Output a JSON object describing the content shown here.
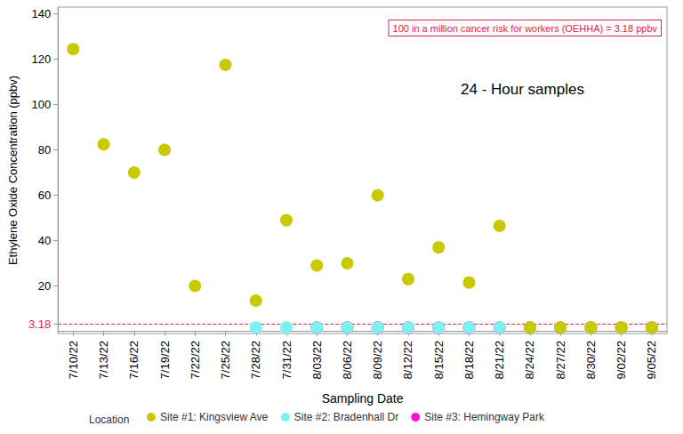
{
  "chart_data": {
    "type": "scatter",
    "annotations": [
      "24 - Hour samples"
    ],
    "threshold": {
      "value": 3.18,
      "label": "100 in a million cancer risk for workers (OEHHA) = 3.18 ppbv",
      "color": "#d9264a",
      "line_style": "dashed"
    },
    "x_label": "Sampling Date",
    "y_label": "Ethylene Oxide Concentration (ppbv)",
    "legend_title": "Location",
    "legend": "bottom",
    "grid": false,
    "marker": "circle",
    "categories": [
      "7/10/22",
      "7/13/22",
      "7/16/22",
      "7/19/22",
      "7/22/22",
      "7/25/22",
      "7/28/22",
      "7/31/22",
      "8/03/22",
      "8/06/22",
      "8/09/22",
      "8/12/22",
      "8/15/22",
      "8/18/22",
      "8/21/22",
      "8/24/22",
      "8/27/22",
      "8/30/22",
      "9/02/22",
      "9/05/22"
    ],
    "series": [
      {
        "name": "Site #1: Kingsview Ave",
        "color": "#c9c900",
        "values": [
          124.5,
          82.5,
          70,
          80,
          20,
          117.5,
          13.5,
          49,
          29,
          30,
          60,
          23,
          37,
          21.5,
          46.5,
          1.6,
          1.6,
          1.6,
          1.6,
          1.6
        ]
      },
      {
        "name": "Site #2: Bradenhall Dr",
        "color": "#7ff0f0",
        "values": [
          null,
          null,
          null,
          null,
          null,
          null,
          1.6,
          1.6,
          1.6,
          1.6,
          1.6,
          1.6,
          1.6,
          1.6,
          1.6,
          1.6,
          1.6,
          1.6,
          1.6,
          1.6
        ]
      },
      {
        "name": "Site #3: Hemingway Park",
        "color": "#ff10c8",
        "values": [
          null,
          null,
          null,
          null,
          null,
          null,
          null,
          null,
          1.6,
          1.6,
          1.6,
          1.6,
          1.6,
          1.6,
          1.6,
          1.6,
          1.6,
          1.6,
          1.6,
          1.6
        ]
      }
    ],
    "ylim": [
      -1,
      143
    ],
    "yticks": [
      3.18,
      20,
      40,
      60,
      80,
      100,
      120,
      140
    ]
  }
}
